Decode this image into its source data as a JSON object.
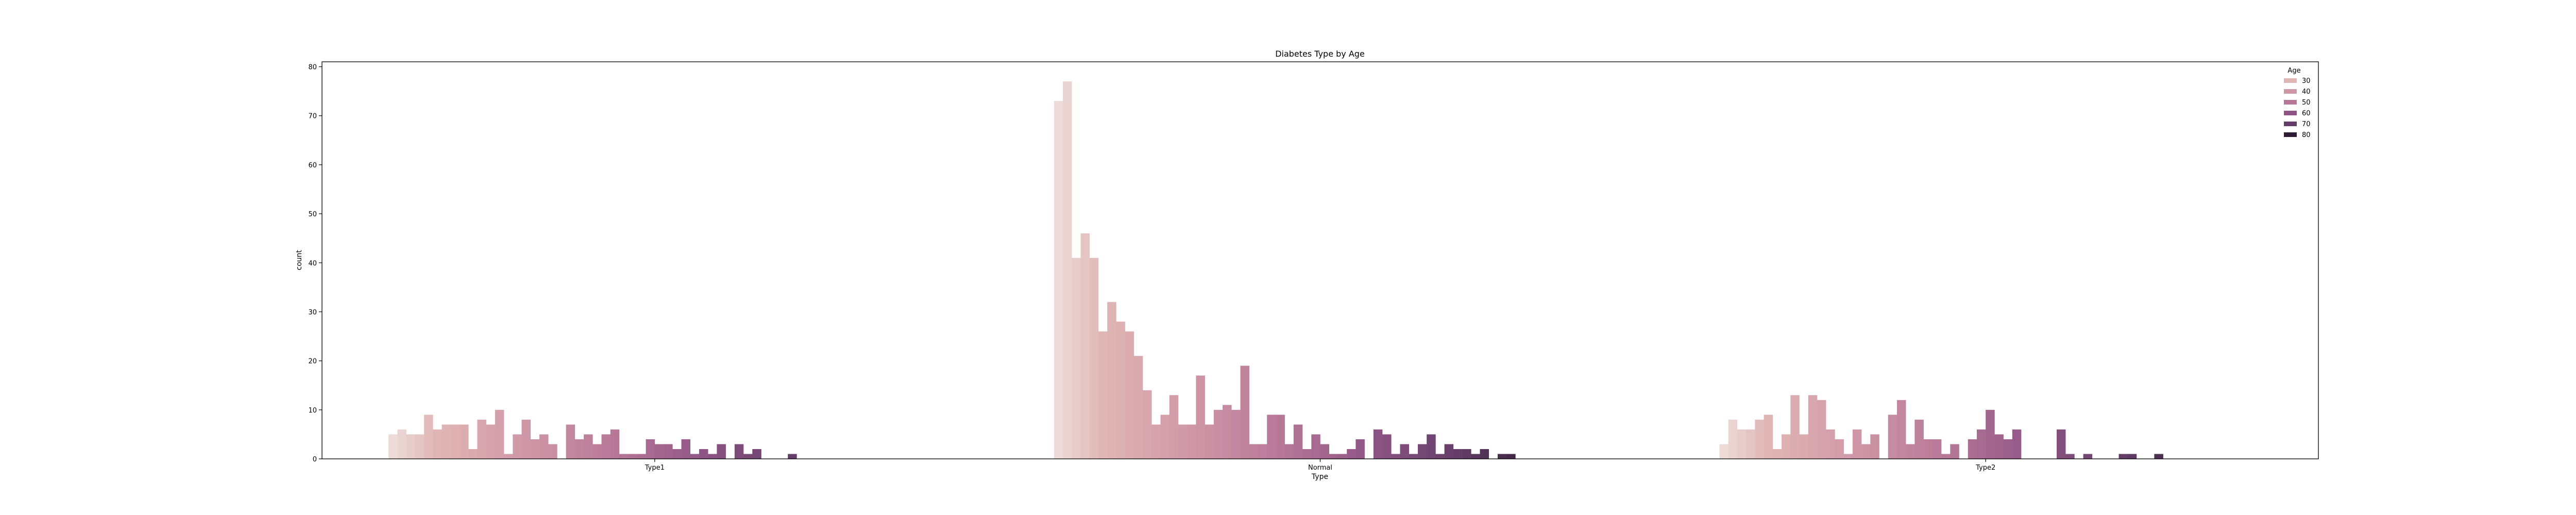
{
  "chart_data": {
    "type": "bar",
    "title": "Diabetes Type by Age",
    "xlabel": "Type",
    "ylabel": "count",
    "categories": [
      "Type1",
      "Normal",
      "Type2"
    ],
    "ylim": [
      0,
      81
    ],
    "yticks": [
      0,
      10,
      20,
      30,
      40,
      50,
      60,
      70,
      80
    ],
    "grid": false,
    "legend": {
      "title": "Age",
      "position": "top-right",
      "entries": [
        {
          "label": "30",
          "color": "#e0b6b5"
        },
        {
          "label": "40",
          "color": "#cf97a6"
        },
        {
          "label": "50",
          "color": "#b77897"
        },
        {
          "label": "60",
          "color": "#8f5585"
        },
        {
          "label": "70",
          "color": "#643e68"
        },
        {
          "label": "80",
          "color": "#2e1a33"
        }
      ]
    },
    "hue_age_range": [
      25,
      84
    ],
    "hue_color_stops": [
      {
        "age": 25,
        "color": "#eddbd8"
      },
      {
        "age": 30,
        "color": "#e0b6b5"
      },
      {
        "age": 40,
        "color": "#cf97a6"
      },
      {
        "age": 50,
        "color": "#b77897"
      },
      {
        "age": 60,
        "color": "#8f5585"
      },
      {
        "age": 70,
        "color": "#643e68"
      },
      {
        "age": 80,
        "color": "#2e1a33"
      },
      {
        "age": 84,
        "color": "#231423"
      }
    ],
    "series_values": {
      "Type1": [
        5,
        6,
        5,
        5,
        9,
        6,
        7,
        7,
        7,
        2,
        8,
        7,
        10,
        1,
        5,
        8,
        4,
        5,
        3,
        0,
        7,
        4,
        5,
        3,
        5,
        6,
        1,
        1,
        1,
        4,
        3,
        3,
        2,
        4,
        1,
        2,
        1,
        3,
        0,
        3,
        1,
        2,
        0,
        0,
        0,
        1,
        0,
        0,
        0,
        0
      ],
      "Normal": [
        73,
        77,
        41,
        46,
        41,
        26,
        32,
        28,
        26,
        21,
        14,
        7,
        9,
        13,
        7,
        7,
        17,
        7,
        10,
        11,
        10,
        19,
        3,
        3,
        9,
        9,
        3,
        7,
        2,
        5,
        3,
        1,
        1,
        2,
        4,
        0,
        6,
        5,
        1,
        3,
        1,
        3,
        5,
        1,
        3,
        2,
        2,
        1,
        2,
        0,
        1,
        1
      ],
      "Type2": [
        3,
        8,
        6,
        6,
        8,
        9,
        2,
        5,
        13,
        5,
        13,
        12,
        6,
        4,
        1,
        6,
        3,
        5,
        0,
        9,
        12,
        3,
        8,
        4,
        4,
        1,
        3,
        0,
        4,
        6,
        10,
        5,
        4,
        6,
        0,
        0,
        0,
        0,
        6,
        1,
        0,
        1,
        0,
        0,
        0,
        1,
        1,
        0,
        0,
        1
      ]
    }
  }
}
